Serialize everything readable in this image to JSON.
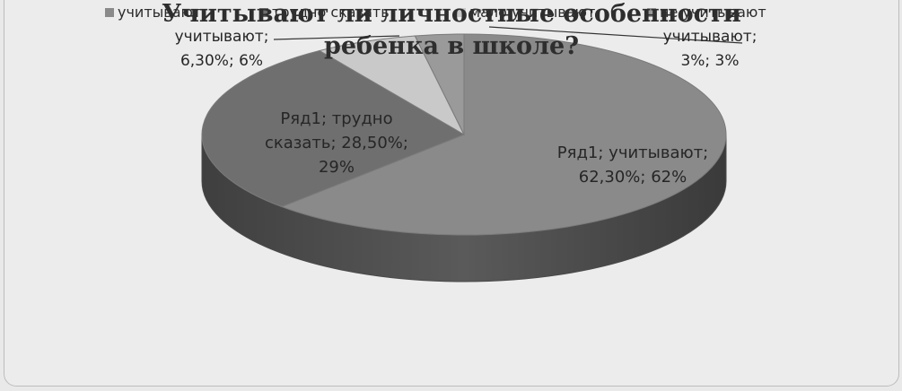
{
  "chart_data": {
    "type": "pie",
    "three_d": true,
    "title_lines": [
      "Учитывают ли личностные особенности",
      "ребенка в школе?"
    ],
    "series_name": "Ряд1",
    "legend_position": "top",
    "categories": [
      "учитывают",
      "трудно сказать",
      "мало учитывают",
      "не учитывают"
    ],
    "values": [
      62.3,
      28.5,
      6.3,
      3
    ],
    "colors": {
      "учитывают": "#8a8a8a",
      "трудно сказать": "#6f6f6f",
      "мало учитывают": "#c9c9c9",
      "не учитывают": "#9a9a9a"
    },
    "data_labels": [
      {
        "lines": [
          "Ряд1; учитывают;",
          "62,30%; 62%"
        ]
      },
      {
        "lines": [
          "Ряд1; трудно",
          "сказать; 28,50%;",
          "29%"
        ]
      },
      {
        "lines": [
          "учитывают;",
          "6,30%; 6%"
        ]
      },
      {
        "lines": [
          "учитывают;",
          "3%; 3%"
        ]
      }
    ]
  }
}
